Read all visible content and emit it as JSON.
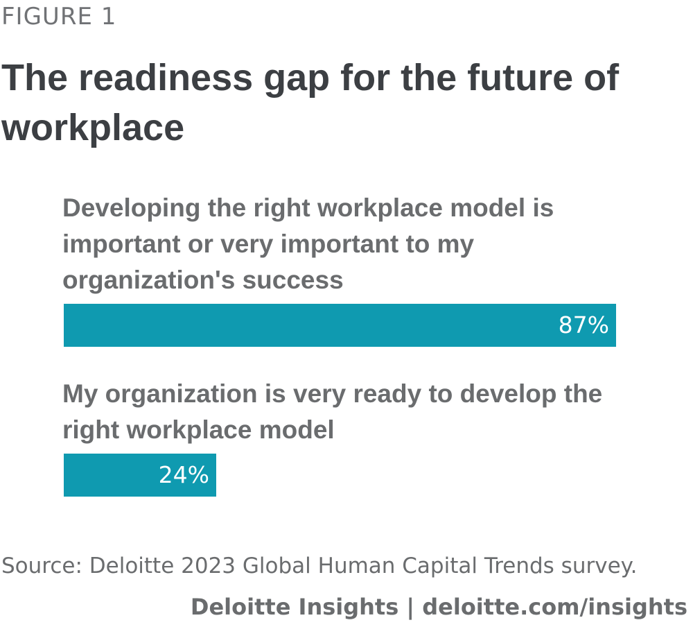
{
  "figure_label": "FIGURE 1",
  "footer": {
    "source": "Source: Deloitte 2023 Global Human Capital Trends survey.",
    "credit": "Deloitte Insights | deloitte.com/insights"
  },
  "colors": {
    "bar": "#0f9ab0",
    "title": "#3c3f43",
    "label": "#6a6c6e"
  },
  "chart_data": {
    "type": "bar",
    "orientation": "horizontal",
    "title": "The readiness gap for the future of workplace",
    "categories": [
      "Developing the right workplace model is important or very important to my organization's success",
      "My organization is very ready to develop the right workplace model"
    ],
    "values": [
      87,
      24
    ],
    "value_labels": [
      "87%",
      "24%"
    ],
    "xlim": [
      0,
      100
    ],
    "grid": false
  }
}
